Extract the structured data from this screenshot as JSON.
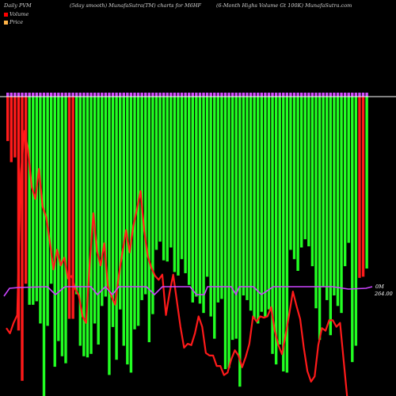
{
  "header": {
    "left": "Daily PVM",
    "center": "(5day smooth) MunafaSutra(TM) charts for M6HF",
    "right": "(6-Month Highs Volume   Gt 100K) MunafaSutra.com"
  },
  "legend": [
    {
      "label": "Volume",
      "color": "#ff0000"
    },
    {
      "label": "Price",
      "color": "#ffb347"
    }
  ],
  "colors": {
    "bull": "#22ff22",
    "bear": "#ff1a1a",
    "cap": "#d24dff",
    "price_line": "#ff1a1a",
    "avg_line": "#cc44ff",
    "baseline": "#ffffff"
  },
  "chart_data": {
    "type": "bar",
    "series": [
      {
        "name": "Volume",
        "values": [
          38,
          56,
          52,
          200,
          243,
          160,
          178,
          178,
          175,
          194,
          256,
          196,
          160,
          231,
          209,
          222,
          228,
          190,
          190,
          169,
          213,
          222,
          223,
          220,
          194,
          212,
          179,
          171,
          238,
          197,
          225,
          182,
          213,
          229,
          236,
          199,
          196,
          174,
          169,
          210,
          186,
          131,
          124,
          140,
          141,
          129,
          150,
          153,
          139,
          151,
          161,
          176,
          171,
          177,
          185,
          154,
          188,
          207,
          176,
          173,
          233,
          232,
          208,
          207,
          248,
          170,
          174,
          183,
          190,
          194,
          184,
          188,
          182,
          220,
          229,
          212,
          235,
          236,
          131,
          139,
          149,
          129,
          122,
          128,
          145,
          181,
          208,
          163,
          174,
          204,
          170,
          179,
          185,
          145,
          125,
          227,
          213,
          155,
          154,
          147
        ],
        "direction": [
          "bear",
          "bear",
          "bear",
          "bear",
          "bear",
          "bear",
          "bull",
          "bull",
          "bull",
          "bull",
          "bull",
          "bull",
          "bull",
          "bull",
          "bull",
          "bull",
          "bull",
          "bear",
          "bear",
          "bull",
          "bull",
          "bull",
          "bull",
          "bull",
          "bull",
          "bull",
          "bull",
          "bull",
          "bull",
          "bull",
          "bull",
          "bull",
          "bull",
          "bull",
          "bull",
          "bull",
          "bull",
          "bull",
          "bull",
          "bull",
          "bull",
          "bull",
          "bull",
          "bull",
          "bull",
          "bull",
          "bull",
          "bull",
          "bull",
          "bull",
          "bull",
          "bull",
          "bull",
          "bull",
          "bull",
          "bull",
          "bull",
          "bull",
          "bull",
          "bull",
          "bull",
          "bull",
          "bull",
          "bull",
          "bull",
          "bull",
          "bull",
          "bull",
          "bull",
          "bull",
          "bull",
          "bull",
          "bull",
          "bull",
          "bull",
          "bull",
          "bull",
          "bull",
          "bull",
          "bull",
          "bull",
          "bull",
          "bull",
          "bull",
          "bull",
          "bull",
          "bull",
          "bull",
          "bull",
          "bull",
          "bull",
          "bull",
          "bull",
          "bull",
          "bull",
          "bull",
          "bull",
          "bear",
          "bear",
          "bull"
        ]
      },
      {
        "name": "Price",
        "values": [
          52,
          48,
          56,
          62,
          170,
          203,
          188,
          160,
          151,
          174,
          145,
          137,
          118,
          97,
          112,
          100,
          106,
          90,
          92,
          82,
          77,
          61,
          56,
          102,
          140,
          111,
          100,
          117,
          84,
          76,
          70,
          92,
          110,
          127,
          110,
          130,
          143,
          157,
          127,
          107,
          98,
          92,
          89,
          93,
          62,
          79,
          93,
          73,
          53,
          37,
          40,
          39,
          48,
          61,
          53,
          33,
          31,
          31,
          23,
          23,
          16,
          18,
          28,
          35,
          31,
          22,
          30,
          40,
          61,
          57,
          61,
          60,
          61,
          68,
          50,
          39,
          32,
          47,
          63,
          80,
          69,
          59,
          37,
          19,
          11,
          15,
          39,
          52,
          50,
          58,
          58,
          53,
          56,
          27,
          -2,
          -9,
          -9,
          -9,
          -9,
          -9
        ]
      }
    ],
    "labels": {
      "avg_value": "0M",
      "price_value": "264.00"
    }
  }
}
